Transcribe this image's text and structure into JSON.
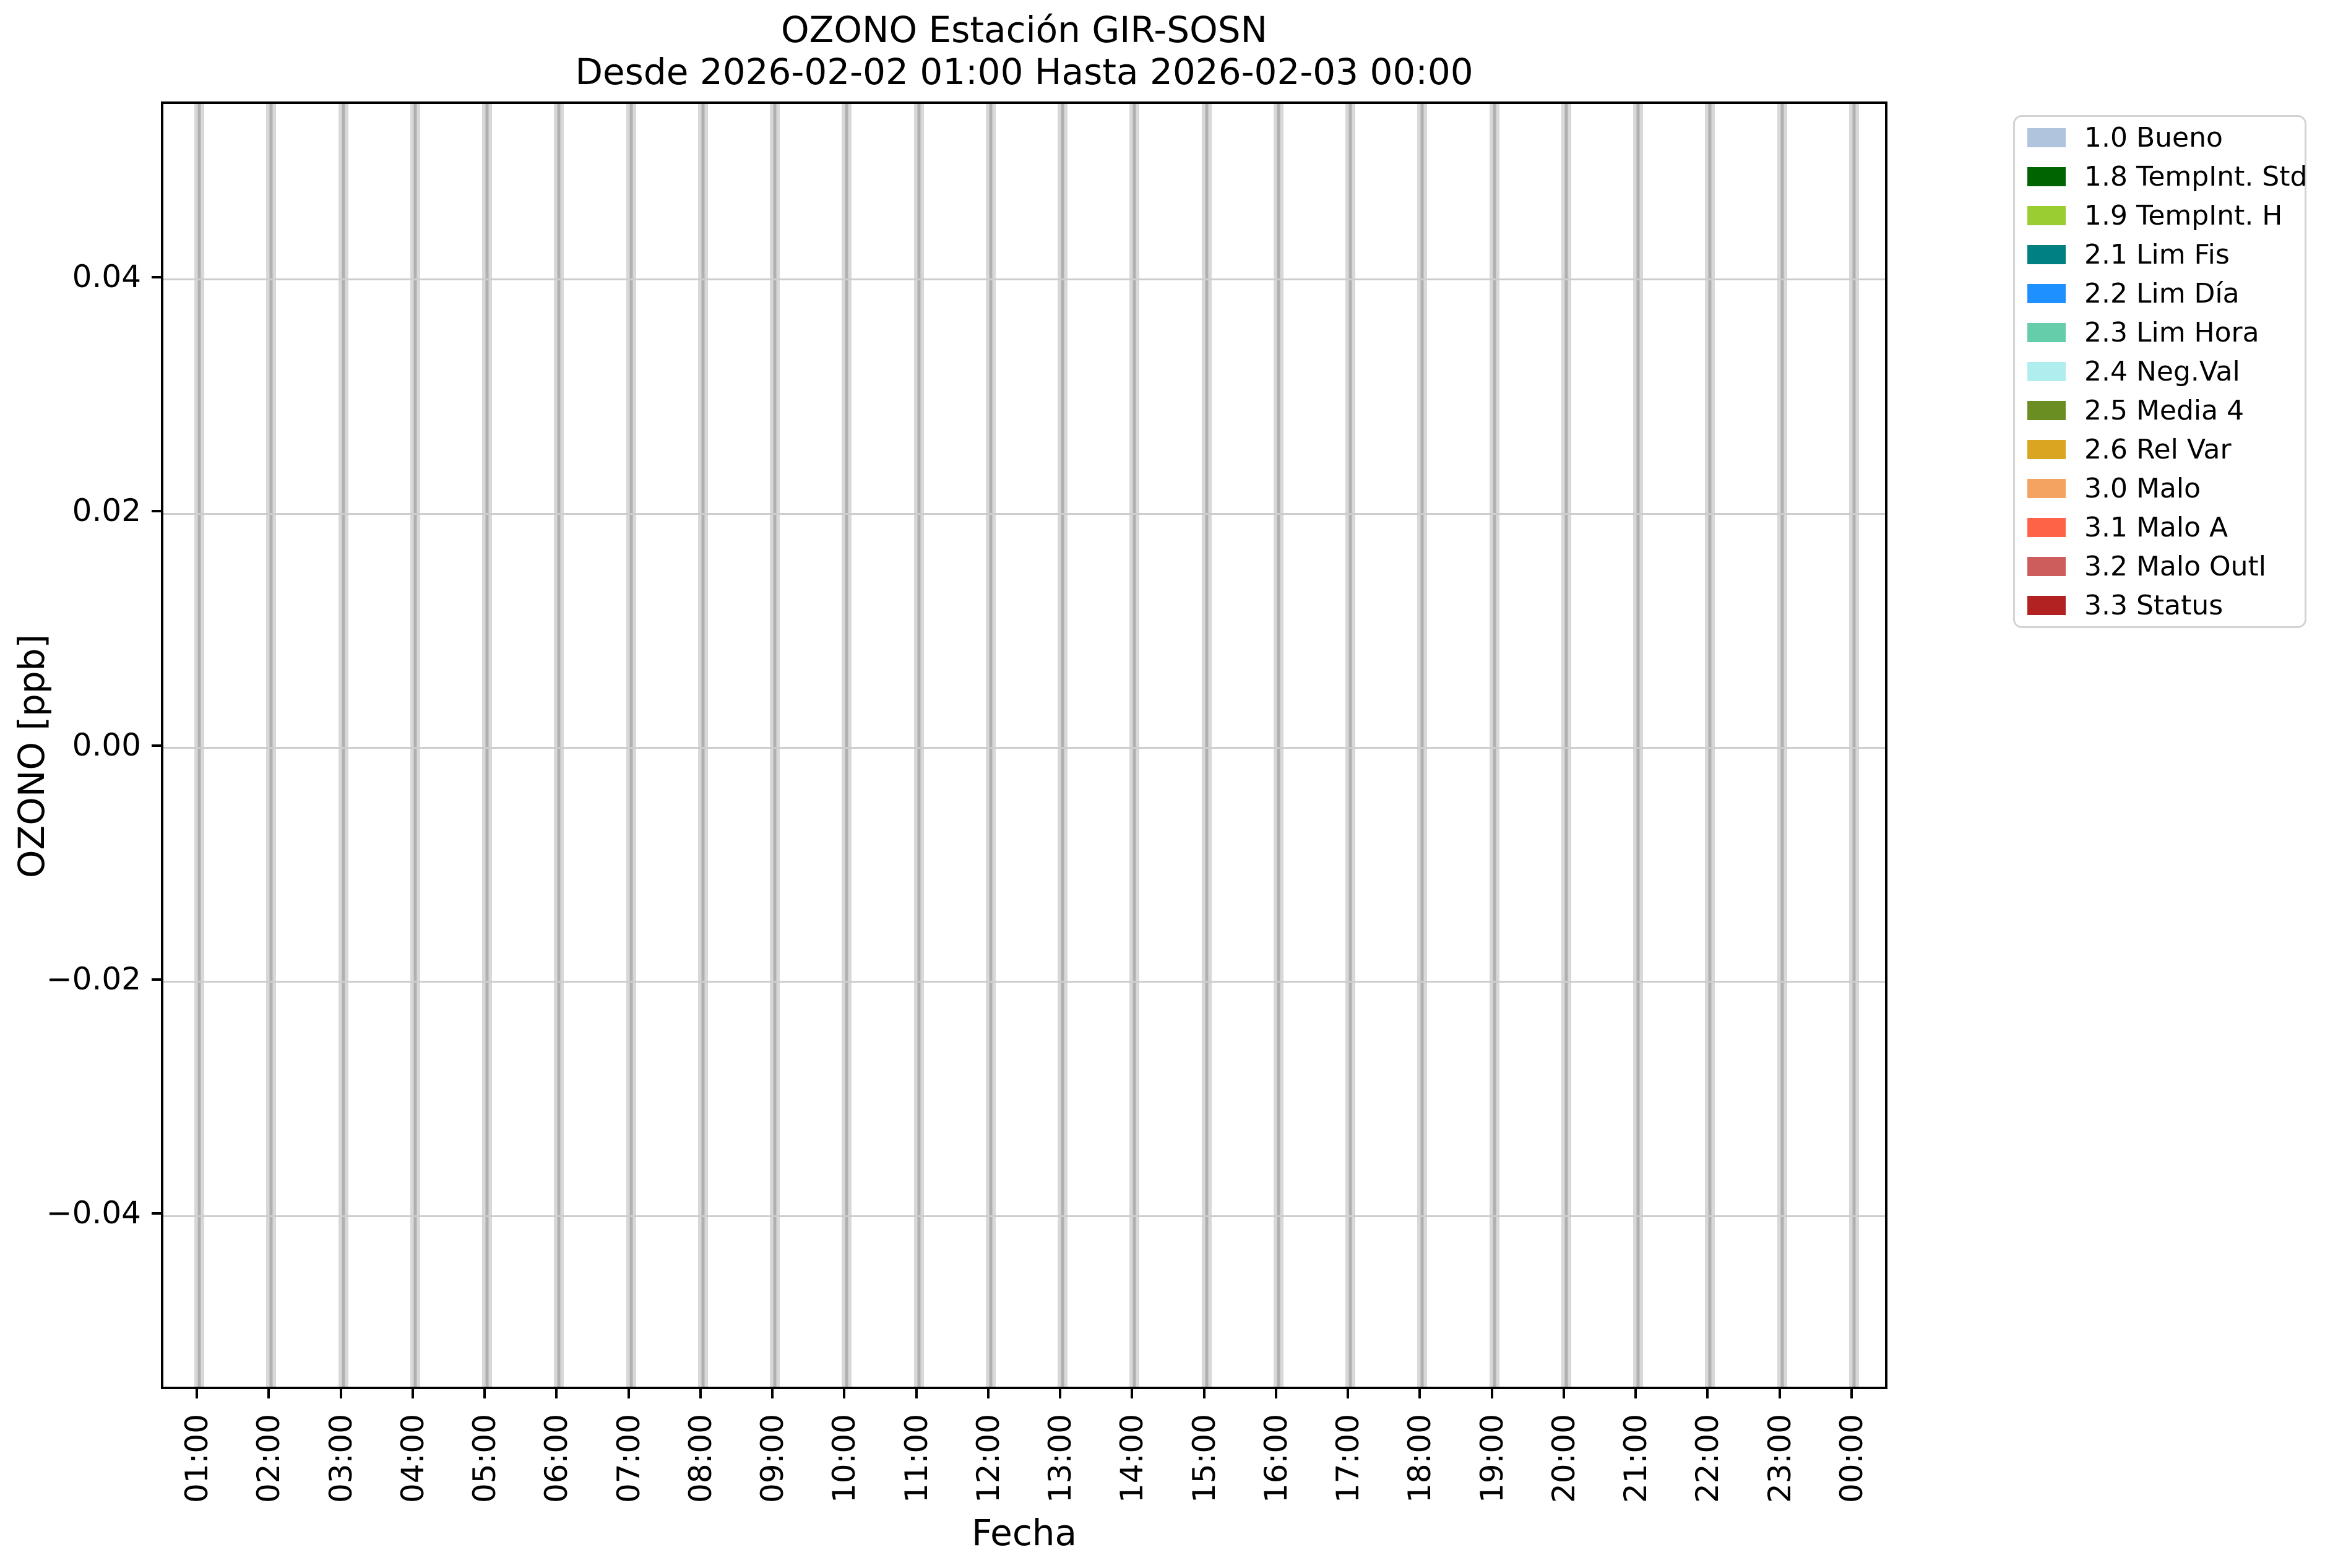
{
  "title": {
    "line1": "OZONO Estación GIR-SOSN",
    "line2": "Desde 2026-02-02 01:00 Hasta 2026-02-03 00:00"
  },
  "axes": {
    "xlabel": "Fecha",
    "ylabel": "OZONO [ppb]",
    "y_tick_labels": [
      "0.04",
      "0.02",
      "0.00",
      "−0.02",
      "−0.04"
    ],
    "y_tick_values": [
      0.04,
      0.02,
      0.0,
      -0.02,
      -0.04
    ],
    "ylim_top": 0.055,
    "ylim_bottom": -0.055
  },
  "style": {
    "background": "#ffffff",
    "spine_color": "#000000",
    "grid_color": "#cdcdcd",
    "stripe_light": "#d8d8d8",
    "stripe_dark": "#b0b0b0",
    "legend_border": "#d3d3d3"
  },
  "chart_data": {
    "type": "bar",
    "title": "OZONO Estación GIR-SOSN",
    "subtitle": "Desde 2026-02-02 01:00 Hasta 2026-02-03 00:00",
    "xlabel": "Fecha",
    "ylabel": "OZONO [ppb]",
    "categories": [
      "01:00",
      "02:00",
      "03:00",
      "04:00",
      "05:00",
      "06:00",
      "07:00",
      "08:00",
      "09:00",
      "10:00",
      "11:00",
      "12:00",
      "13:00",
      "14:00",
      "15:00",
      "16:00",
      "17:00",
      "18:00",
      "19:00",
      "20:00",
      "21:00",
      "22:00",
      "23:00",
      "00:00"
    ],
    "ylim": [
      -0.055,
      0.055
    ],
    "yticks": [
      0.04,
      0.02,
      0.0,
      -0.02,
      -0.04
    ],
    "grid": true,
    "legend_position": "right",
    "series": [
      {
        "name": "1.0 Bueno",
        "color": "#b0c4de",
        "values": [
          0,
          0,
          0,
          0,
          0,
          0,
          0,
          0,
          0,
          0,
          0,
          0,
          0,
          0,
          0,
          0,
          0,
          0,
          0,
          0,
          0,
          0,
          0,
          0
        ]
      },
      {
        "name": "1.8 TempInt. Std",
        "color": "#006400",
        "values": [
          0,
          0,
          0,
          0,
          0,
          0,
          0,
          0,
          0,
          0,
          0,
          0,
          0,
          0,
          0,
          0,
          0,
          0,
          0,
          0,
          0,
          0,
          0,
          0
        ]
      },
      {
        "name": "1.9 TempInt. H",
        "color": "#9acd32",
        "values": [
          0,
          0,
          0,
          0,
          0,
          0,
          0,
          0,
          0,
          0,
          0,
          0,
          0,
          0,
          0,
          0,
          0,
          0,
          0,
          0,
          0,
          0,
          0,
          0
        ]
      },
      {
        "name": "2.1 Lim Fis",
        "color": "#008080",
        "values": [
          0,
          0,
          0,
          0,
          0,
          0,
          0,
          0,
          0,
          0,
          0,
          0,
          0,
          0,
          0,
          0,
          0,
          0,
          0,
          0,
          0,
          0,
          0,
          0
        ]
      },
      {
        "name": "2.2 Lim Día",
        "color": "#1e90ff",
        "values": [
          0,
          0,
          0,
          0,
          0,
          0,
          0,
          0,
          0,
          0,
          0,
          0,
          0,
          0,
          0,
          0,
          0,
          0,
          0,
          0,
          0,
          0,
          0,
          0
        ]
      },
      {
        "name": "2.3 Lim Hora",
        "color": "#66cdaa",
        "values": [
          0,
          0,
          0,
          0,
          0,
          0,
          0,
          0,
          0,
          0,
          0,
          0,
          0,
          0,
          0,
          0,
          0,
          0,
          0,
          0,
          0,
          0,
          0,
          0
        ]
      },
      {
        "name": "2.4 Neg.Val",
        "color": "#afeeee",
        "values": [
          0,
          0,
          0,
          0,
          0,
          0,
          0,
          0,
          0,
          0,
          0,
          0,
          0,
          0,
          0,
          0,
          0,
          0,
          0,
          0,
          0,
          0,
          0,
          0
        ]
      },
      {
        "name": "2.5 Media 4",
        "color": "#6b8e23",
        "values": [
          0,
          0,
          0,
          0,
          0,
          0,
          0,
          0,
          0,
          0,
          0,
          0,
          0,
          0,
          0,
          0,
          0,
          0,
          0,
          0,
          0,
          0,
          0,
          0
        ]
      },
      {
        "name": "2.6 Rel Var",
        "color": "#daa520",
        "values": [
          0,
          0,
          0,
          0,
          0,
          0,
          0,
          0,
          0,
          0,
          0,
          0,
          0,
          0,
          0,
          0,
          0,
          0,
          0,
          0,
          0,
          0,
          0,
          0
        ]
      },
      {
        "name": "3.0 Malo",
        "color": "#f4a460",
        "values": [
          0,
          0,
          0,
          0,
          0,
          0,
          0,
          0,
          0,
          0,
          0,
          0,
          0,
          0,
          0,
          0,
          0,
          0,
          0,
          0,
          0,
          0,
          0,
          0
        ]
      },
      {
        "name": "3.1 Malo A",
        "color": "#ff6347",
        "values": [
          0,
          0,
          0,
          0,
          0,
          0,
          0,
          0,
          0,
          0,
          0,
          0,
          0,
          0,
          0,
          0,
          0,
          0,
          0,
          0,
          0,
          0,
          0,
          0
        ]
      },
      {
        "name": "3.2 Malo Outl",
        "color": "#cd5c5c",
        "values": [
          0,
          0,
          0,
          0,
          0,
          0,
          0,
          0,
          0,
          0,
          0,
          0,
          0,
          0,
          0,
          0,
          0,
          0,
          0,
          0,
          0,
          0,
          0,
          0
        ]
      },
      {
        "name": "3.3 Status",
        "color": "#b22222",
        "values": [
          0,
          0,
          0,
          0,
          0,
          0,
          0,
          0,
          0,
          0,
          0,
          0,
          0,
          0,
          0,
          0,
          0,
          0,
          0,
          0,
          0,
          0,
          0,
          0
        ]
      }
    ]
  }
}
